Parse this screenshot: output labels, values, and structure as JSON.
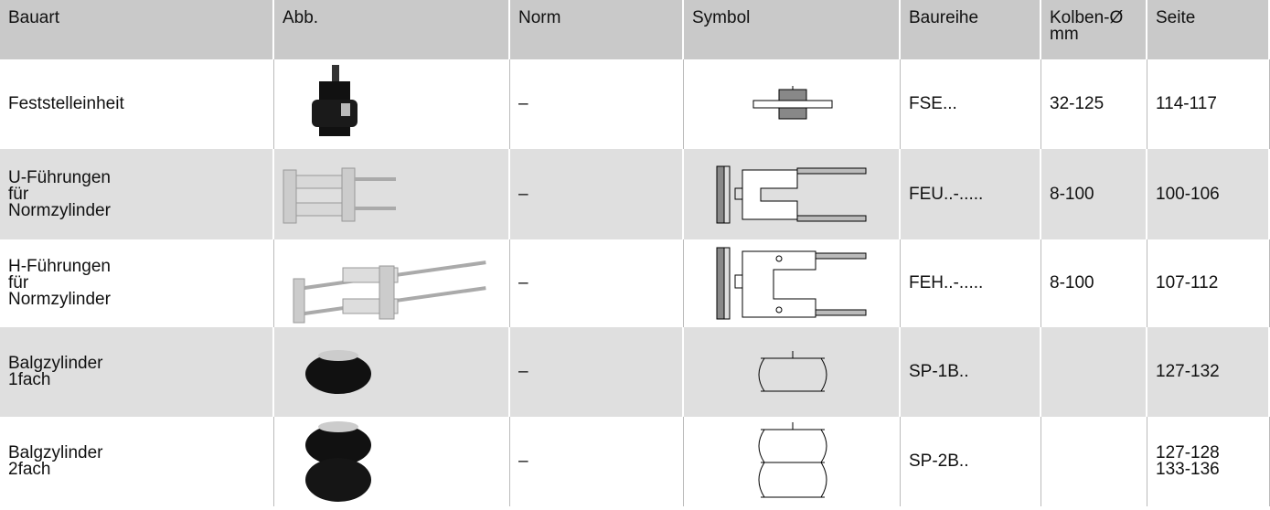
{
  "table": {
    "columns": [
      "Bauart",
      "Abb.",
      "Norm",
      "Symbol",
      "Baureihe",
      "Kolben-Ø\nmm",
      "Seite"
    ],
    "rows": [
      {
        "bauart": "Feststelleinheit",
        "norm": "–",
        "baureihe": "FSE...",
        "kolben": "32-125",
        "seite": "114-117"
      },
      {
        "bauart": "U-Führungen\nfür\nNormzylinder",
        "norm": "–",
        "baureihe": "FEU..-.....",
        "kolben": "8-100",
        "seite": "100-106"
      },
      {
        "bauart": "H-Führungen\nfür\nNormzylinder",
        "norm": "–",
        "baureihe": "FEH..-.....",
        "kolben": "8-100",
        "seite": "107-112"
      },
      {
        "bauart": "Balgzylinder\n1fach",
        "norm": "–",
        "baureihe": "SP-1B..",
        "seite": "127-132"
      },
      {
        "bauart": "Balgzylinder\n2fach",
        "norm": "–",
        "baureihe": "SP-2B..",
        "seite": "127-128\n133-136"
      }
    ]
  }
}
